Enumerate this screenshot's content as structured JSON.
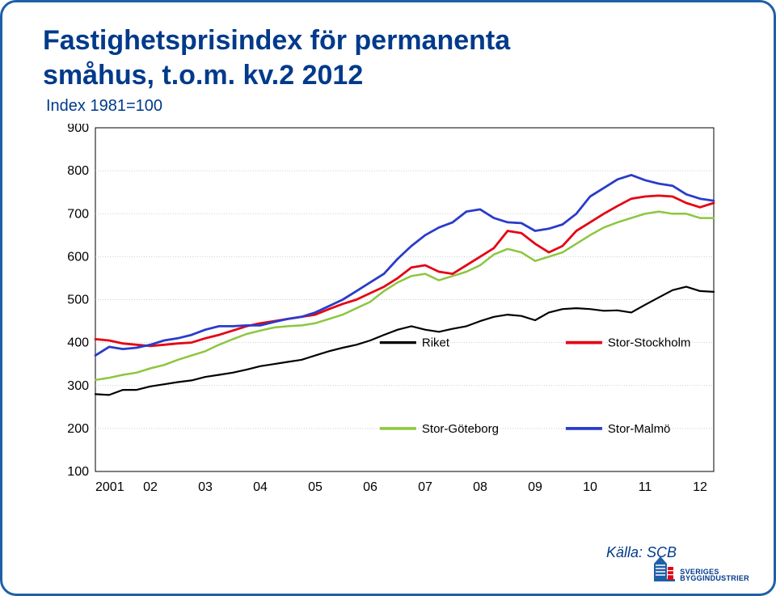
{
  "title_line1": "Fastighetsprisindex för permanenta",
  "title_line2": "småhus, t.o.m. kv.2 2012",
  "subtitle": "Index 1981=100",
  "source_label": "Källa: SCB",
  "logo_line1": "SVERIGES",
  "logo_line2": "BYGGINDUSTRIER",
  "chart": {
    "type": "line",
    "background_color": "#ffffff",
    "grid_color": "#bfbfbf",
    "axis_color": "#000000",
    "ylim": [
      100,
      900
    ],
    "ytick_step": 100,
    "ytick_fontsize": 16,
    "xtick_fontsize": 16,
    "x_labels": [
      "2001",
      "02",
      "03",
      "04",
      "05",
      "06",
      "07",
      "08",
      "09",
      "10",
      "11",
      "12"
    ],
    "x_points_per_label": 4,
    "legend": {
      "fontsize": 15,
      "rows": [
        {
          "y_value": 400,
          "items": [
            {
              "series": "riket",
              "label": "Riket"
            },
            {
              "series": "stockholm",
              "label": "Stor-Stockholm"
            }
          ]
        },
        {
          "y_value": 200,
          "items": [
            {
              "series": "goteborg",
              "label": "Stor-Göteborg"
            },
            {
              "series": "malmo",
              "label": "Stor-Malmö"
            }
          ]
        }
      ]
    },
    "series": {
      "riket": {
        "label": "Riket",
        "color": "#000000",
        "width": 2.2,
        "data": [
          280,
          278,
          290,
          290,
          298,
          303,
          308,
          312,
          320,
          325,
          330,
          337,
          345,
          350,
          355,
          360,
          370,
          380,
          388,
          395,
          405,
          418,
          430,
          438,
          430,
          425,
          432,
          438,
          450,
          460,
          465,
          462,
          452,
          470,
          478,
          480,
          478,
          474,
          475,
          470,
          488,
          505,
          522,
          530,
          520,
          518
        ]
      },
      "stockholm": {
        "label": "Stor-Stockholm",
        "color": "#e30613",
        "width": 2.8,
        "data": [
          408,
          405,
          398,
          395,
          392,
          395,
          398,
          400,
          410,
          418,
          428,
          438,
          445,
          450,
          455,
          460,
          465,
          478,
          490,
          500,
          515,
          530,
          550,
          575,
          580,
          565,
          560,
          580,
          600,
          620,
          660,
          655,
          630,
          610,
          625,
          660,
          680,
          700,
          718,
          735,
          740,
          742,
          740,
          725,
          715,
          725
        ]
      },
      "goteborg": {
        "label": "Stor-Göteborg",
        "color": "#8cc63f",
        "width": 2.5,
        "data": [
          313,
          318,
          325,
          330,
          340,
          348,
          360,
          370,
          380,
          395,
          408,
          420,
          428,
          435,
          438,
          440,
          445,
          455,
          465,
          480,
          495,
          520,
          540,
          555,
          560,
          545,
          555,
          565,
          580,
          605,
          618,
          610,
          590,
          600,
          610,
          630,
          650,
          668,
          680,
          690,
          700,
          705,
          700,
          700,
          690,
          690
        ]
      },
      "malmo": {
        "label": "Stor-Malmö",
        "color": "#2a3cc9",
        "width": 2.8,
        "data": [
          370,
          390,
          385,
          388,
          395,
          405,
          410,
          418,
          430,
          438,
          438,
          440,
          440,
          448,
          455,
          460,
          470,
          485,
          500,
          520,
          540,
          560,
          595,
          625,
          650,
          668,
          680,
          705,
          710,
          690,
          680,
          678,
          660,
          665,
          675,
          700,
          740,
          760,
          780,
          790,
          778,
          770,
          765,
          745,
          735,
          730
        ]
      }
    }
  }
}
